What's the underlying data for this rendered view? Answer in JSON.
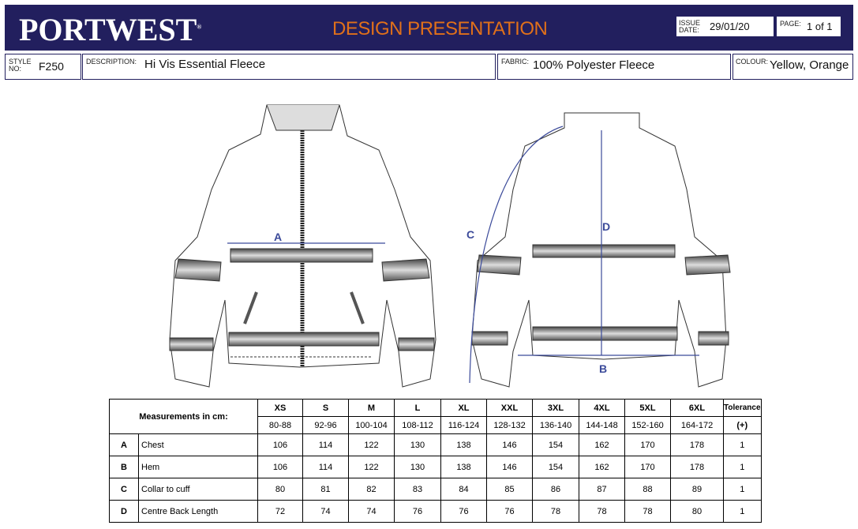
{
  "header": {
    "logo": "PORTWEST",
    "title": "DESIGN PRESENTATION",
    "issue_date_label": "ISSUE DATE:",
    "issue_date": "29/01/20",
    "page_label": "PAGE:",
    "page": "1 of 1"
  },
  "info": {
    "style_label": "STYLE NO:",
    "style": "F250",
    "description_label": "DESCRIPTION:",
    "description": "Hi Vis Essential Fleece",
    "fabric_label": "FABRIC:",
    "fabric": "100% Polyester Fleece",
    "colour_label": "COLOUR:",
    "colour": "Yellow, Orange"
  },
  "drawing": {
    "labels": [
      "A",
      "B",
      "C",
      "D"
    ],
    "accent": "#3b4a9a"
  },
  "table": {
    "title": "Measurements in cm:",
    "sizes": [
      "XS",
      "S",
      "M",
      "L",
      "XL",
      "XXL",
      "3XL",
      "4XL",
      "5XL",
      "6XL"
    ],
    "ranges": [
      "80-88",
      "92-96",
      "100-104",
      "108-112",
      "116-124",
      "128-132",
      "136-140",
      "144-148",
      "152-160",
      "164-172"
    ],
    "tolerance_label": "Tolerance",
    "tolerance_sub": "(+)",
    "rows": [
      {
        "code": "A",
        "name": "Chest",
        "values": [
          "106",
          "114",
          "122",
          "130",
          "138",
          "146",
          "154",
          "162",
          "170",
          "178"
        ],
        "tol": "1"
      },
      {
        "code": "B",
        "name": "Hem",
        "values": [
          "106",
          "114",
          "122",
          "130",
          "138",
          "146",
          "154",
          "162",
          "170",
          "178"
        ],
        "tol": "1"
      },
      {
        "code": "C",
        "name": "Collar to cuff",
        "values": [
          "80",
          "81",
          "82",
          "83",
          "84",
          "85",
          "86",
          "87",
          "88",
          "89"
        ],
        "tol": "1"
      },
      {
        "code": "D",
        "name": "Centre Back Length",
        "values": [
          "72",
          "74",
          "74",
          "76",
          "76",
          "76",
          "78",
          "78",
          "78",
          "80"
        ],
        "tol": "1"
      }
    ]
  }
}
